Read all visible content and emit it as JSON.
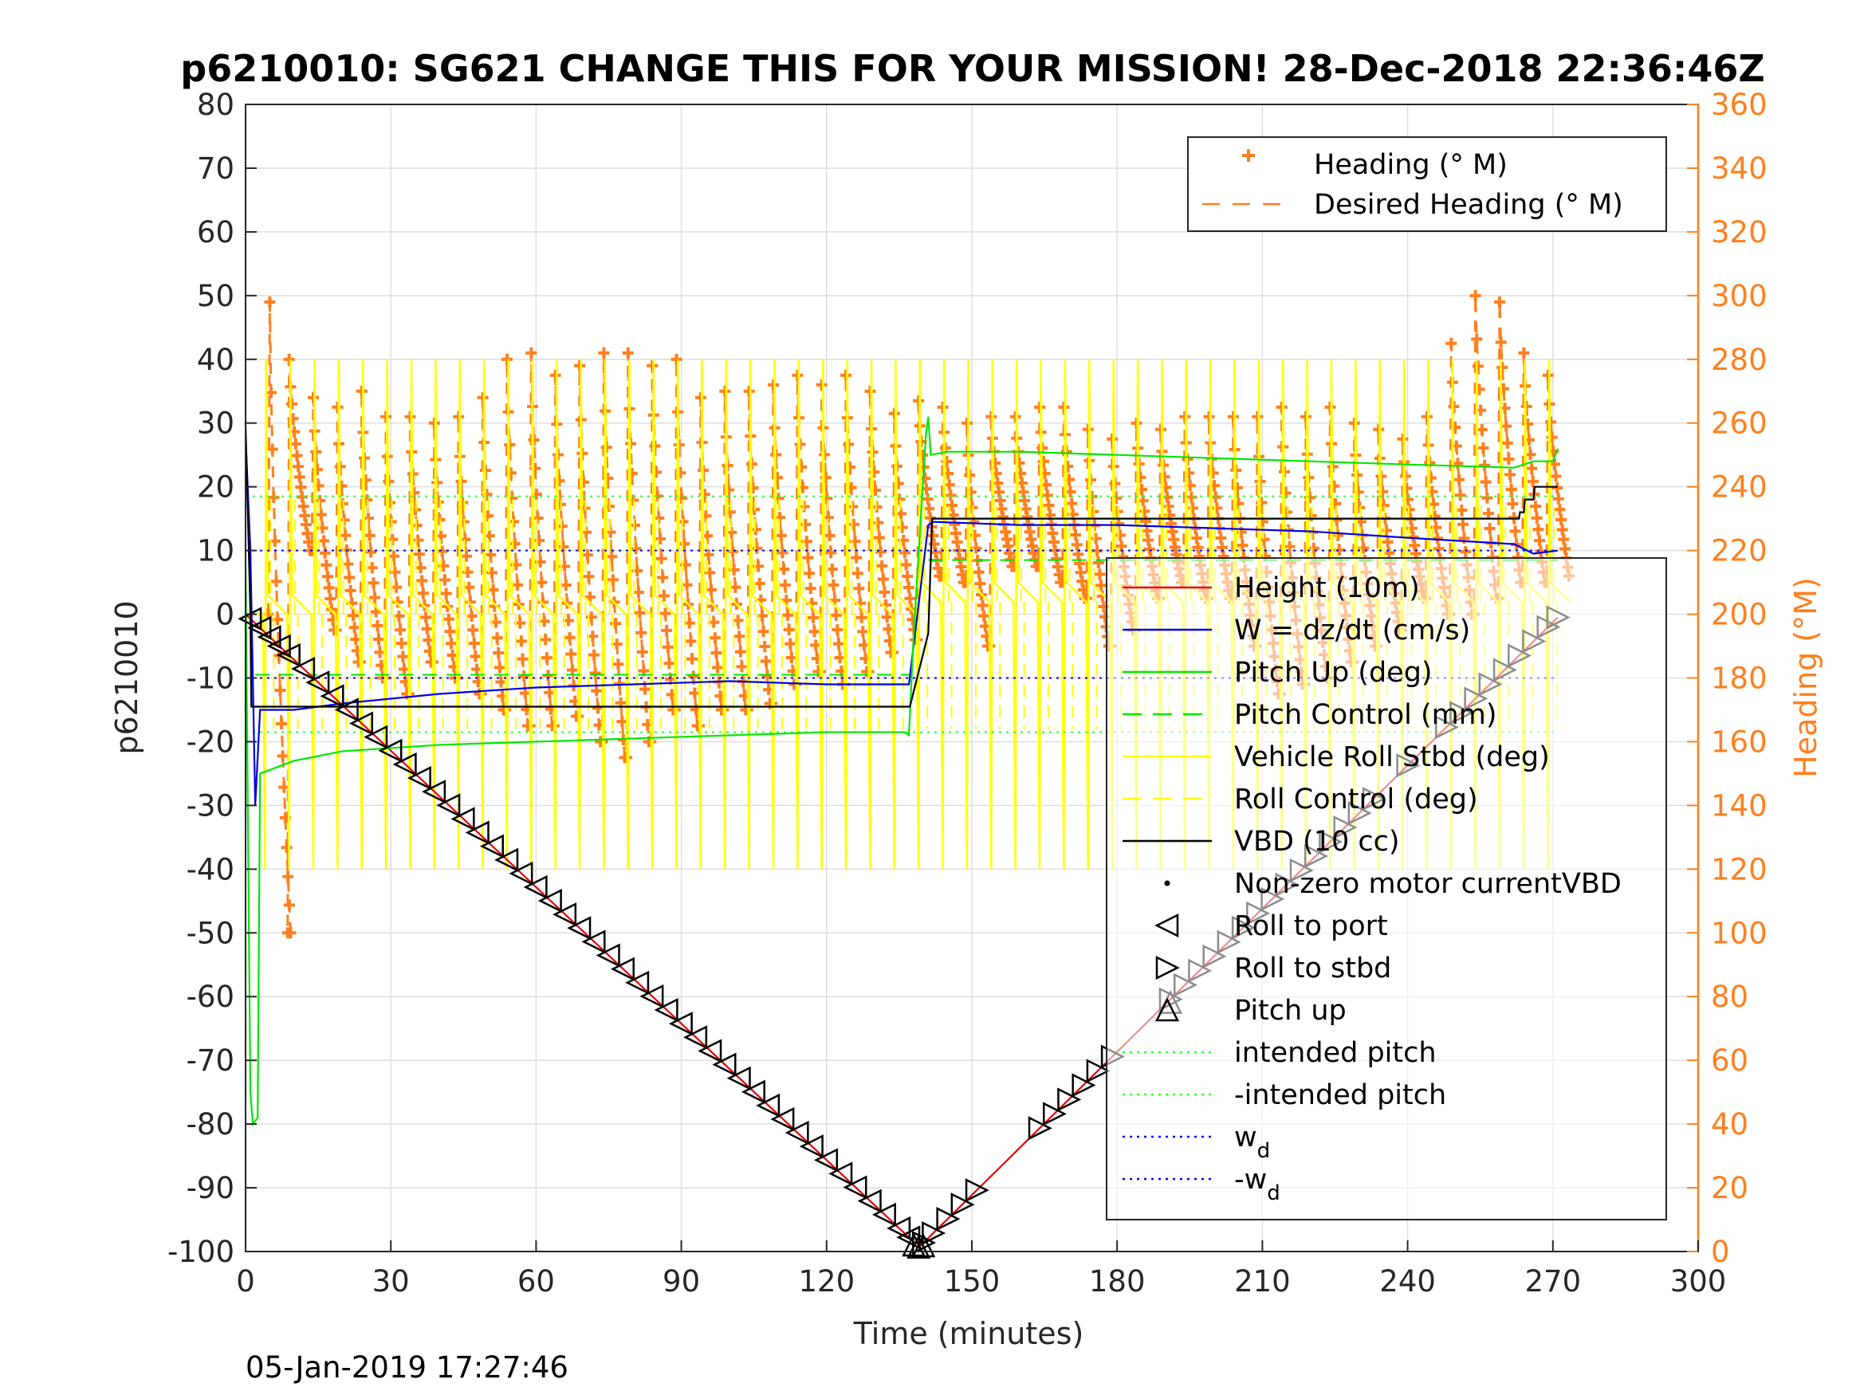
{
  "chart_data": {
    "type": "line",
    "title": "p6210010: SG621 CHANGE THIS FOR YOUR MISSION! 28-Dec-2018 22:36:46Z",
    "xlabel": "Time (minutes)",
    "ylabel": "p6210010",
    "y2label": "Heading (°M)",
    "timestamp": "05-Jan-2019 17:27:46",
    "xlim": [
      0,
      300
    ],
    "ylim": [
      -100,
      80
    ],
    "y2lim": [
      0,
      360
    ],
    "xticks": [
      "0",
      "30",
      "60",
      "90",
      "120",
      "150",
      "180",
      "210",
      "240",
      "270",
      "300"
    ],
    "yticks": [
      "80",
      "70",
      "60",
      "50",
      "40",
      "30",
      "20",
      "10",
      "0",
      "-10",
      "-20",
      "-30",
      "-40",
      "-50",
      "-60",
      "-70",
      "-80",
      "-90",
      "-100"
    ],
    "y2ticks": [
      "360",
      "340",
      "320",
      "300",
      "280",
      "260",
      "240",
      "220",
      "200",
      "180",
      "160",
      "140",
      "120",
      "100",
      "80",
      "60",
      "40",
      "20",
      "0"
    ],
    "grid": true,
    "colors": {
      "heading": "#ff7f1e",
      "height": "#e60000",
      "w": "#0000e6",
      "pitch": "#00e600",
      "roll": "#ffff00",
      "vbd": "#000000",
      "intended": "#33ff33",
      "wd": "#0000ff",
      "right_axis": "#ff7f1e"
    },
    "legend_heading": {
      "placement": "top-right",
      "entries": [
        "Heading (° M)",
        "Desired Heading (° M)"
      ]
    },
    "legend_main": {
      "placement": "right",
      "entries": [
        "Height (10m)",
        "W = dz/dt (cm/s)",
        "Pitch Up (deg)",
        "Pitch Control (mm)",
        "Vehicle Roll Stbd (deg)",
        "Roll Control (deg)",
        "VBD (10 cc)",
        "Non-zero motor currentVBD",
        "Roll to port",
        "Roll to stbd",
        "Pitch up",
        "intended pitch",
        "-intended pitch",
        "w_d",
        "-w_d"
      ],
      "wd_text": "w",
      "wd_sub": "d",
      "neg_wd_text": "-w",
      "neg_wd_sub": "d"
    },
    "series": [
      {
        "name": "Height (10m)",
        "axis": "left",
        "x": [
          0,
          138,
          139.5,
          271
        ],
        "y": [
          0,
          -98.5,
          -99,
          -0.5
        ]
      },
      {
        "name": "W = dz/dt (cm/s)",
        "axis": "left",
        "x": [
          0,
          1,
          2,
          3,
          10,
          20,
          40,
          60,
          80,
          100,
          120,
          136,
          137,
          141,
          142,
          160,
          180,
          200,
          220,
          240,
          262,
          266,
          271
        ],
        "y": [
          28,
          10,
          -30,
          -15,
          -15,
          -14,
          -12.5,
          -11.5,
          -11,
          -10.5,
          -11,
          -11,
          -11,
          14,
          14.5,
          14,
          14,
          13.5,
          13,
          12,
          11,
          9.5,
          10
        ]
      },
      {
        "name": "Pitch Up (deg)",
        "axis": "left",
        "x": [
          0,
          1,
          1.5,
          2.5,
          3,
          10,
          20,
          40,
          60,
          80,
          100,
          120,
          136,
          137,
          138,
          140.5,
          141,
          141.5,
          145,
          160,
          180,
          200,
          220,
          240,
          262,
          266,
          270,
          271
        ],
        "y": [
          8,
          -75,
          -80,
          -79,
          -25,
          -23,
          -21.5,
          -20.5,
          -20,
          -19.5,
          -19,
          -18.5,
          -18.5,
          -19,
          -3,
          28,
          31,
          25,
          25.5,
          25.5,
          25,
          24.5,
          24,
          23.5,
          23,
          24,
          24,
          26
        ]
      },
      {
        "name": "VBD (10 cc)",
        "axis": "left",
        "x": [
          0,
          1,
          1.2,
          137,
          137.2,
          141,
          141.8,
          263,
          263.2,
          264,
          264.2,
          266,
          266.2,
          271
        ],
        "y": [
          30,
          0,
          -14.5,
          -14.5,
          -14.5,
          -3,
          15,
          15,
          16,
          16,
          18,
          18,
          20,
          20
        ]
      }
    ],
    "heading_lobes": {
      "x": [
        5,
        9,
        14,
        19,
        24,
        29,
        34,
        39,
        44,
        49,
        54,
        59,
        64,
        69,
        74,
        79,
        84,
        89,
        94,
        99,
        104,
        109,
        114,
        119,
        124,
        129,
        134,
        139,
        144,
        149,
        154,
        159,
        164,
        169,
        174,
        179,
        184,
        189,
        194,
        199,
        204,
        209,
        214,
        219,
        224,
        229,
        234,
        239,
        244,
        249,
        254,
        259,
        264,
        269
      ],
      "high": [
        298,
        280,
        268,
        265,
        270,
        262,
        262,
        260,
        262,
        268,
        280,
        282,
        275,
        278,
        282,
        282,
        278,
        280,
        268,
        270,
        270,
        272,
        275,
        272,
        275,
        270,
        263,
        267,
        265,
        260,
        262,
        262,
        265,
        265,
        258,
        255,
        260,
        258,
        262,
        262,
        262,
        262,
        265,
        262,
        265,
        260,
        258,
        255,
        262,
        285,
        300,
        298,
        282,
        275
      ],
      "low": [
        100,
        220,
        195,
        185,
        180,
        175,
        185,
        180,
        175,
        170,
        165,
        165,
        168,
        160,
        155,
        160,
        170,
        165,
        170,
        170,
        172,
        178,
        182,
        178,
        182,
        188,
        192,
        212,
        210,
        190,
        215,
        215,
        210,
        205,
        190,
        195,
        205,
        210,
        205,
        205,
        190,
        175,
        178,
        180,
        185,
        190,
        195,
        205,
        200,
        200,
        205,
        210,
        210,
        212
      ]
    },
    "roll_lobes": {
      "x": [
        4,
        9,
        14,
        19,
        24,
        29,
        34,
        39,
        44,
        49,
        54,
        59,
        64,
        69,
        74,
        79,
        84,
        89,
        94,
        99,
        104,
        109,
        114,
        119,
        124,
        129,
        134,
        139,
        144,
        149,
        154,
        159,
        164,
        169,
        174,
        179,
        184,
        189,
        194,
        199,
        204,
        209,
        214,
        219,
        224,
        229,
        234,
        239,
        244,
        249,
        254,
        259,
        264,
        269
      ],
      "high": 40,
      "low": -40,
      "baseline": [
        0,
        0,
        0,
        0,
        0,
        0,
        0,
        0,
        0,
        0,
        0,
        0,
        0,
        0,
        0,
        0,
        0,
        0,
        0,
        0,
        0,
        0,
        0,
        0,
        0,
        0,
        0,
        2,
        2,
        2,
        2,
        2,
        2,
        2,
        2,
        2,
        2,
        2,
        2,
        2,
        2,
        2,
        2,
        2,
        2,
        2,
        2,
        2,
        2,
        2,
        2,
        2,
        2,
        2
      ]
    },
    "reference_lines": [
      {
        "name": "intended pitch",
        "y": 18.5,
        "x": [
          0,
          271
        ]
      },
      {
        "name": "-intended pitch",
        "y": -18.5,
        "x": [
          0,
          271
        ]
      },
      {
        "name": "w_d",
        "y": 10,
        "x": [
          0,
          271
        ]
      },
      {
        "name": "-w_d",
        "y": -10,
        "x": [
          0,
          271
        ]
      },
      {
        "name": "Pitch Control (mm)",
        "y": -9.5,
        "x": [
          2,
          137
        ]
      },
      {
        "name": "Pitch Control (mm)",
        "y": 8.5,
        "x": [
          141,
          271
        ]
      }
    ],
    "markers": {
      "descent_x": [
        1,
        3,
        5,
        7,
        9,
        12,
        15,
        18,
        21,
        24,
        27,
        30,
        33,
        36,
        39,
        42,
        45,
        48,
        51,
        54,
        57,
        60,
        63,
        66,
        69,
        72,
        75,
        78,
        81,
        84,
        87,
        90,
        93,
        96,
        99,
        102,
        105,
        108,
        111,
        114,
        117,
        120,
        123,
        126,
        129,
        132,
        135,
        137
      ],
      "ascent_x": [
        140,
        142,
        145,
        148,
        151,
        164,
        167,
        170,
        173,
        176,
        179,
        191,
        194,
        197,
        200,
        203,
        206,
        209,
        212,
        215,
        218,
        221,
        224,
        227,
        230,
        233,
        240,
        248,
        251,
        254,
        257,
        260,
        263,
        266,
        269,
        271
      ],
      "pitch_up_x": [
        138,
        139,
        140,
        191
      ]
    }
  }
}
